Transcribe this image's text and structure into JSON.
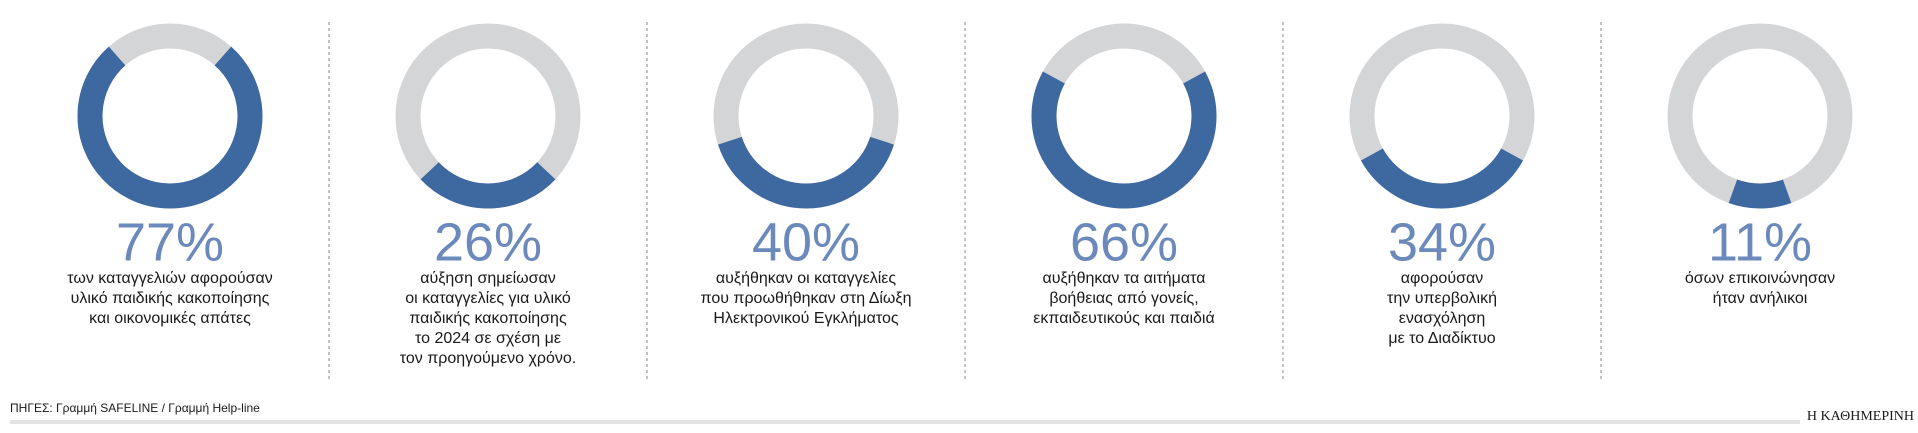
{
  "chart_data": [
    {
      "type": "donut",
      "value": 77,
      "value_label": "77%",
      "color": "#3d68a0",
      "track_color": "#d4d5d7",
      "caption": [
        "των καταγγελιών αφορούσαν",
        "υλικό παιδικής κακοποίησης",
        "και οικονομικές απάτες"
      ]
    },
    {
      "type": "donut",
      "value": 26,
      "value_label": "26%",
      "color": "#3d68a0",
      "track_color": "#d4d5d7",
      "caption": [
        "αύξηση σημείωσαν",
        "οι καταγγελίες για υλικό",
        "παιδικής κακοποίησης",
        "το 2024 σε σχέση με",
        "τον προηγούμενο χρόνο."
      ]
    },
    {
      "type": "donut",
      "value": 40,
      "value_label": "40%",
      "color": "#3d68a0",
      "track_color": "#d4d5d7",
      "caption": [
        "αυξήθηκαν οι καταγγελίες",
        "που προωθήθηκαν στη Δίωξη",
        "Ηλεκτρονικού Εγκλήματος"
      ]
    },
    {
      "type": "donut",
      "value": 66,
      "value_label": "66%",
      "color": "#3d68a0",
      "track_color": "#d4d5d7",
      "caption": [
        "αυξήθηκαν τα αιτήματα",
        "βοήθειας από γονείς,",
        "εκπαιδευτικούς και παιδιά"
      ]
    },
    {
      "type": "donut",
      "value": 34,
      "value_label": "34%",
      "color": "#3d68a0",
      "track_color": "#d4d5d7",
      "caption": [
        "αφορούσαν",
        "την υπερβολική",
        "ενασχόληση",
        "με το Διαδίκτυο"
      ]
    },
    {
      "type": "donut",
      "value": 11,
      "value_label": "11%",
      "color": "#3d68a0",
      "track_color": "#d4d5d7",
      "caption": [
        "όσων επικοινώνησαν",
        "ήταν ανήλικοι"
      ]
    }
  ],
  "source": "ΠΗΓΕΣ: Γραμμή SAFELINE / Γραμμή Help-line",
  "brand": "Η ΚΑΘΗΜΕΡΙΝΗ"
}
